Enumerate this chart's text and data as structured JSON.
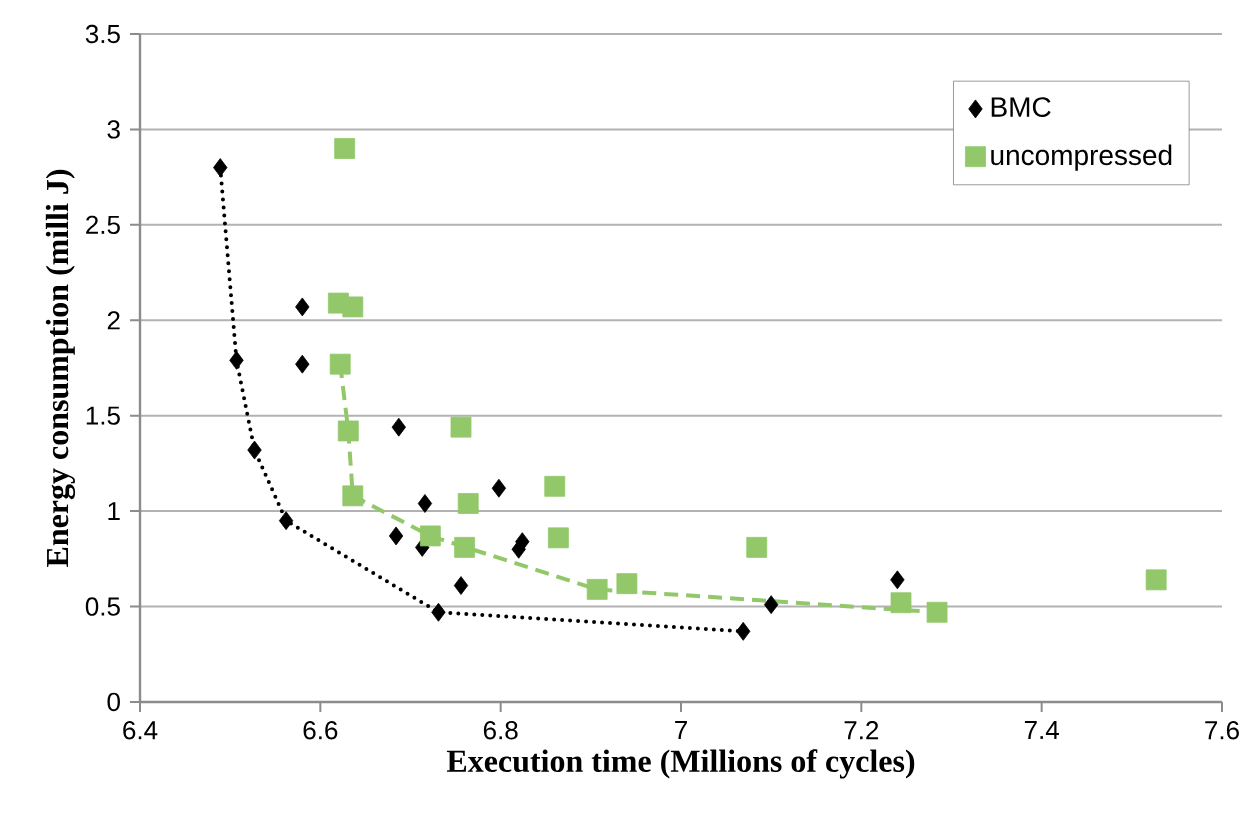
{
  "chart_data": {
    "type": "scatter",
    "xlabel": "Execution time (Millions of cycles)",
    "ylabel": "Energy consumption (milli J)",
    "xlim": [
      6.4,
      7.6
    ],
    "xticks": [
      6.4,
      6.6,
      6.8,
      7,
      7.2,
      7.4,
      7.6
    ],
    "ylim": [
      0,
      3.5
    ],
    "yticks": [
      0,
      0.5,
      1,
      1.5,
      2,
      2.5,
      3,
      3.5
    ],
    "grid": "y",
    "legend": "top right",
    "series": [
      {
        "name": "BMC",
        "color": "#000000",
        "marker": "diamond",
        "x": [
          6.489,
          6.507,
          6.527,
          6.562,
          6.58,
          6.58,
          6.687,
          6.716,
          6.684,
          6.713,
          6.756,
          6.731,
          6.798,
          6.824,
          6.82,
          7.1,
          7.069,
          7.24
        ],
        "values": [
          2.8,
          1.79,
          1.32,
          0.95,
          2.07,
          1.77,
          1.44,
          1.04,
          0.87,
          0.81,
          0.61,
          0.47,
          1.12,
          0.84,
          0.8,
          0.51,
          0.37,
          0.64
        ]
      },
      {
        "name": "uncompressed",
        "color": "#92c86a",
        "marker": "square",
        "x": [
          6.627,
          6.62,
          6.636,
          6.622,
          6.631,
          6.636,
          6.756,
          6.764,
          6.722,
          6.76,
          6.86,
          6.864,
          6.907,
          6.94,
          7.084,
          7.244,
          7.284,
          7.527
        ],
        "values": [
          2.9,
          2.09,
          2.07,
          1.77,
          1.42,
          1.08,
          1.44,
          1.04,
          0.87,
          0.81,
          1.13,
          0.86,
          0.59,
          0.62,
          0.81,
          0.52,
          0.47,
          0.64
        ]
      },
      {
        "type": "line",
        "color": "#000000",
        "line_style": "dotted",
        "x": [
          6.489,
          6.507,
          6.527,
          6.562,
          6.731,
          7.069
        ],
        "values": [
          2.8,
          1.79,
          1.32,
          0.95,
          0.47,
          0.37
        ]
      },
      {
        "type": "line",
        "color": "#92c86a",
        "line_style": "dashed",
        "x": [
          6.622,
          6.631,
          6.636,
          6.722,
          6.907,
          7.284
        ],
        "values": [
          1.77,
          1.42,
          1.08,
          0.87,
          0.59,
          0.47
        ]
      }
    ]
  }
}
